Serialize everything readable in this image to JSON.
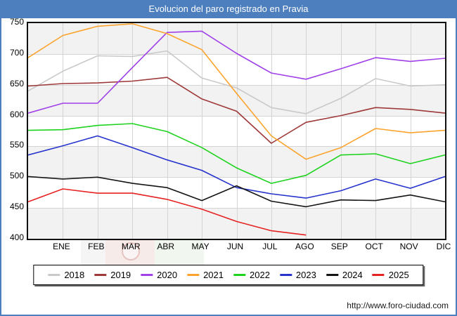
{
  "title": "Evolucion del paro registrado en Pravia",
  "footer": {
    "url": "http://www.foro-ciudad.com"
  },
  "colors": {
    "frame_border": "#4d7ebe",
    "title_bar_bg": "#4d7ebe",
    "title_text": "#ffffff",
    "plot_border": "#111111",
    "gridline": "#d4d4d4",
    "band_shaded": "#f2f2f2",
    "band_plain": "#ffffff"
  },
  "chart_data": {
    "type": "line",
    "title": "Evolucion del paro registrado en Pravia",
    "xlabel": "",
    "ylabel": "",
    "x_categories": [
      "ENE",
      "FEB",
      "MAR",
      "ABR",
      "MAY",
      "JUN",
      "JUL",
      "AGO",
      "SEP",
      "OCT",
      "NOV",
      "DIC"
    ],
    "x_axis_note": "Each yearly series has 13 points: it starts at the left axis with December of the previous year, then one point per month ENE-DIC. The 2025 series ends at AGO.",
    "ylim": [
      400,
      750
    ],
    "yticks": [
      750,
      700,
      650,
      600,
      550,
      500,
      450,
      400
    ],
    "grid": true,
    "legend_position": "bottom",
    "series": [
      {
        "name": "2018",
        "color": "#c9c9c9",
        "values": [
          640,
          672,
          697,
          696,
          705,
          661,
          645,
          613,
          603,
          628,
          660,
          648,
          650
        ]
      },
      {
        "name": "2019",
        "color": "#9e3939",
        "values": [
          648,
          652,
          653,
          656,
          662,
          627,
          607,
          555,
          589,
          600,
          613,
          610,
          604
        ]
      },
      {
        "name": "2020",
        "color": "#a040e8",
        "values": [
          604,
          620,
          620,
          678,
          735,
          737,
          701,
          669,
          659,
          676,
          694,
          688,
          693
        ]
      },
      {
        "name": "2021",
        "color": "#fca32d",
        "values": [
          694,
          730,
          745,
          749,
          733,
          707,
          636,
          567,
          529,
          548,
          579,
          572,
          576
        ]
      },
      {
        "name": "2022",
        "color": "#1ed31e",
        "values": [
          576,
          577,
          584,
          587,
          574,
          548,
          515,
          490,
          503,
          536,
          538,
          522,
          536
        ]
      },
      {
        "name": "2023",
        "color": "#2633cc",
        "values": [
          536,
          551,
          567,
          548,
          528,
          511,
          483,
          473,
          466,
          478,
          497,
          482,
          501
        ]
      },
      {
        "name": "2024",
        "color": "#141414",
        "values": [
          501,
          497,
          500,
          490,
          483,
          462,
          486,
          461,
          452,
          463,
          462,
          471,
          460
        ]
      },
      {
        "name": "2025",
        "color": "#e62222",
        "values": [
          460,
          481,
          474,
          474,
          464,
          448,
          428,
          413,
          406
        ]
      }
    ]
  }
}
